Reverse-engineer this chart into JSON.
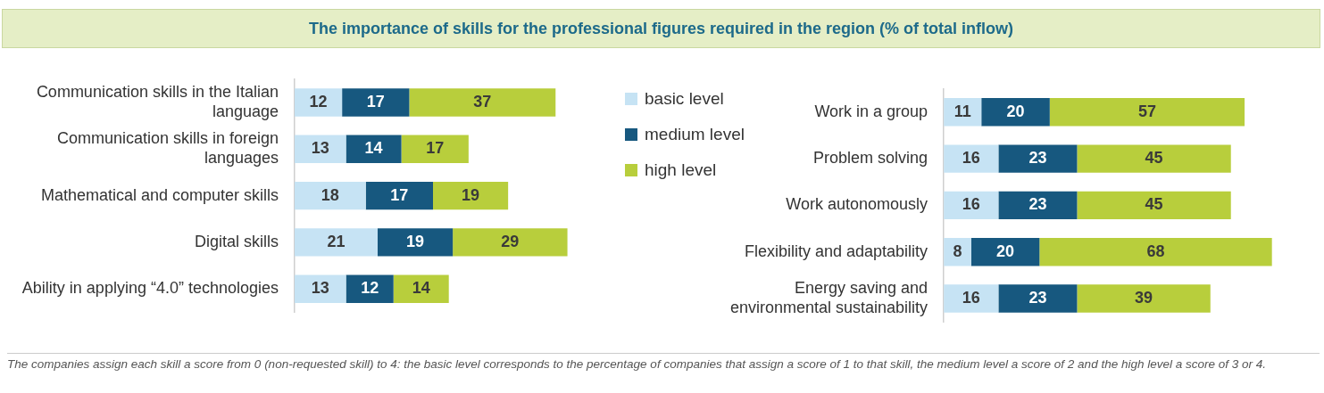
{
  "chart_data": [
    {
      "type": "bar",
      "orientation": "horizontal",
      "stacked": true,
      "data_labels": true,
      "legend": "right",
      "title": "The importance of skills for the professional figures required in the region (% of total inflow)",
      "categories": [
        "Communication skills in the Italian language",
        "Communication skills in foreign languages",
        "Mathematical and computer skills",
        "Digital skills",
        "Ability in applying “4.0” technologies"
      ],
      "series": [
        {
          "name": "basic level",
          "color": "#c6e3f4",
          "values": [
            12,
            13,
            18,
            21,
            13
          ]
        },
        {
          "name": "medium level",
          "color": "#17587f",
          "values": [
            17,
            14,
            17,
            19,
            12
          ]
        },
        {
          "name": "high level",
          "color": "#b8ce3c",
          "values": [
            37,
            17,
            19,
            29,
            14
          ]
        }
      ]
    },
    {
      "type": "bar",
      "orientation": "horizontal",
      "stacked": true,
      "data_labels": true,
      "categories": [
        "Work in a group",
        "Problem solving",
        "Work autonomously",
        "Flexibility and adaptability",
        "Energy saving and environmental sustainability"
      ],
      "series": [
        {
          "color": "#c6e3f4",
          "values": [
            11,
            16,
            16,
            8,
            16
          ]
        },
        {
          "color": "#17587f",
          "values": [
            20,
            23,
            23,
            20,
            23
          ]
        },
        {
          "color": "#b8ce3c",
          "values": [
            57,
            45,
            45,
            68,
            39
          ]
        }
      ],
      "annotations": [
        "The companies assign each skill a score from 0 (non-requested skill) to 4: the basic level corresponds to the percentage of companies that assign a score of 1 to that skill, the medium level a score of 2 and the high level a score of 3 or 4."
      ]
    }
  ]
}
